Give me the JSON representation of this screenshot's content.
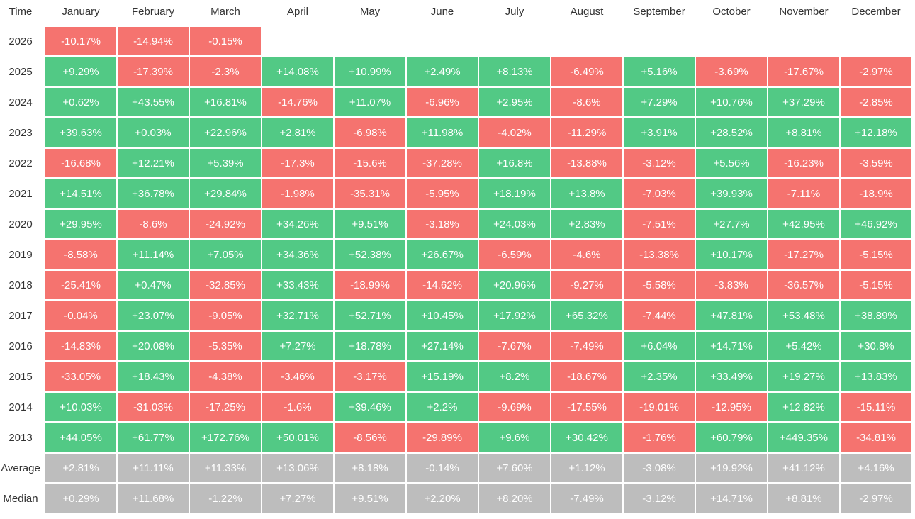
{
  "table": {
    "colors": {
      "positive": "#52c985",
      "negative": "#f5736f",
      "summary": "#bdbdbd"
    },
    "header": [
      "Time",
      "January",
      "February",
      "March",
      "April",
      "May",
      "June",
      "July",
      "August",
      "September",
      "October",
      "November",
      "December"
    ],
    "rows": [
      {
        "label": "2026",
        "cells": [
          "-10.17%",
          "-14.94%",
          "-0.15%"
        ]
      },
      {
        "label": "2025",
        "cells": [
          "+9.29%",
          "-17.39%",
          "-2.3%",
          "+14.08%",
          "+10.99%",
          "+2.49%",
          "+8.13%",
          "-6.49%",
          "+5.16%",
          "-3.69%",
          "-17.67%",
          "-2.97%"
        ]
      },
      {
        "label": "2024",
        "cells": [
          "+0.62%",
          "+43.55%",
          "+16.81%",
          "-14.76%",
          "+11.07%",
          "-6.96%",
          "+2.95%",
          "-8.6%",
          "+7.29%",
          "+10.76%",
          "+37.29%",
          "-2.85%"
        ]
      },
      {
        "label": "2023",
        "cells": [
          "+39.63%",
          "+0.03%",
          "+22.96%",
          "+2.81%",
          "-6.98%",
          "+11.98%",
          "-4.02%",
          "-11.29%",
          "+3.91%",
          "+28.52%",
          "+8.81%",
          "+12.18%"
        ]
      },
      {
        "label": "2022",
        "cells": [
          "-16.68%",
          "+12.21%",
          "+5.39%",
          "-17.3%",
          "-15.6%",
          "-37.28%",
          "+16.8%",
          "-13.88%",
          "-3.12%",
          "+5.56%",
          "-16.23%",
          "-3.59%"
        ]
      },
      {
        "label": "2021",
        "cells": [
          "+14.51%",
          "+36.78%",
          "+29.84%",
          "-1.98%",
          "-35.31%",
          "-5.95%",
          "+18.19%",
          "+13.8%",
          "-7.03%",
          "+39.93%",
          "-7.11%",
          "-18.9%"
        ]
      },
      {
        "label": "2020",
        "cells": [
          "+29.95%",
          "-8.6%",
          "-24.92%",
          "+34.26%",
          "+9.51%",
          "-3.18%",
          "+24.03%",
          "+2.83%",
          "-7.51%",
          "+27.7%",
          "+42.95%",
          "+46.92%"
        ]
      },
      {
        "label": "2019",
        "cells": [
          "-8.58%",
          "+11.14%",
          "+7.05%",
          "+34.36%",
          "+52.38%",
          "+26.67%",
          "-6.59%",
          "-4.6%",
          "-13.38%",
          "+10.17%",
          "-17.27%",
          "-5.15%"
        ]
      },
      {
        "label": "2018",
        "cells": [
          "-25.41%",
          "+0.47%",
          "-32.85%",
          "+33.43%",
          "-18.99%",
          "-14.62%",
          "+20.96%",
          "-9.27%",
          "-5.58%",
          "-3.83%",
          "-36.57%",
          "-5.15%"
        ]
      },
      {
        "label": "2017",
        "cells": [
          "-0.04%",
          "+23.07%",
          "-9.05%",
          "+32.71%",
          "+52.71%",
          "+10.45%",
          "+17.92%",
          "+65.32%",
          "-7.44%",
          "+47.81%",
          "+53.48%",
          "+38.89%"
        ]
      },
      {
        "label": "2016",
        "cells": [
          "-14.83%",
          "+20.08%",
          "-5.35%",
          "+7.27%",
          "+18.78%",
          "+27.14%",
          "-7.67%",
          "-7.49%",
          "+6.04%",
          "+14.71%",
          "+5.42%",
          "+30.8%"
        ]
      },
      {
        "label": "2015",
        "cells": [
          "-33.05%",
          "+18.43%",
          "-4.38%",
          "-3.46%",
          "-3.17%",
          "+15.19%",
          "+8.2%",
          "-18.67%",
          "+2.35%",
          "+33.49%",
          "+19.27%",
          "+13.83%"
        ]
      },
      {
        "label": "2014",
        "cells": [
          "+10.03%",
          "-31.03%",
          "-17.25%",
          "-1.6%",
          "+39.46%",
          "+2.2%",
          "-9.69%",
          "-17.55%",
          "-19.01%",
          "-12.95%",
          "+12.82%",
          "-15.11%"
        ]
      },
      {
        "label": "2013",
        "cells": [
          "+44.05%",
          "+61.77%",
          "+172.76%",
          "+50.01%",
          "-8.56%",
          "-29.89%",
          "+9.6%",
          "+30.42%",
          "-1.76%",
          "+60.79%",
          "+449.35%",
          "-34.81%"
        ]
      }
    ],
    "summary_rows": [
      {
        "label": "Average",
        "cells": [
          "+2.81%",
          "+11.11%",
          "+11.33%",
          "+13.06%",
          "+8.18%",
          "-0.14%",
          "+7.60%",
          "+1.12%",
          "-3.08%",
          "+19.92%",
          "+41.12%",
          "+4.16%"
        ]
      },
      {
        "label": "Median",
        "cells": [
          "+0.29%",
          "+11.68%",
          "-1.22%",
          "+7.27%",
          "+9.51%",
          "+2.20%",
          "+8.20%",
          "-7.49%",
          "-3.12%",
          "+14.71%",
          "+8.81%",
          "-2.97%"
        ]
      }
    ]
  }
}
